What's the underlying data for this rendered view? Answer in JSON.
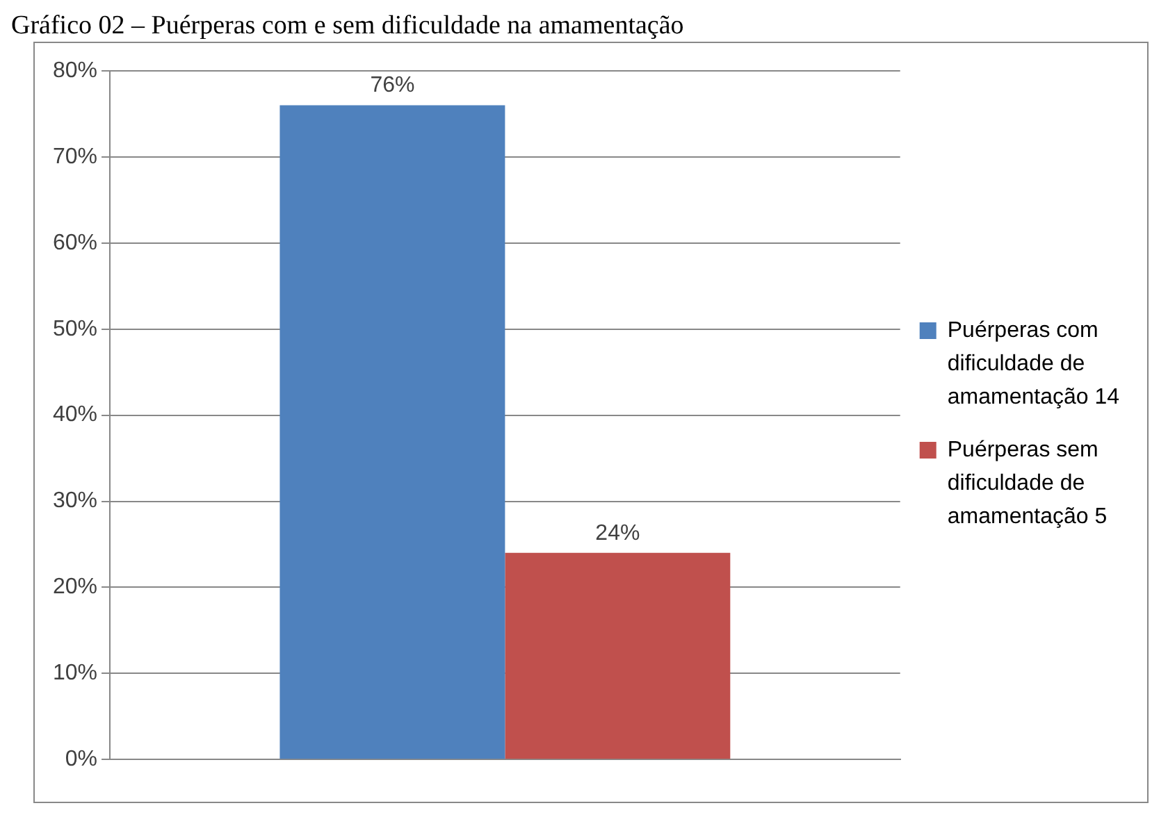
{
  "chart_data": {
    "type": "bar",
    "title": "Gráfico 02 – Puérperas com e sem dificuldade na amamentação",
    "categories": [
      null
    ],
    "series": [
      {
        "name": "Puérperas com dificuldade de amamentação 14",
        "color": "#4f81bd",
        "values": [
          76
        ],
        "value_labels": [
          "76%"
        ]
      },
      {
        "name": "Puérperas sem dificuldade de amamentação 5",
        "color": "#c0504d",
        "values": [
          24
        ],
        "value_labels": [
          "24%"
        ]
      }
    ],
    "ylim": [
      0,
      80
    ],
    "yticks": [
      {
        "value": 0,
        "label": "0%"
      },
      {
        "value": 10,
        "label": "10%"
      },
      {
        "value": 20,
        "label": "20%"
      },
      {
        "value": 30,
        "label": "30%"
      },
      {
        "value": 40,
        "label": "40%"
      },
      {
        "value": 50,
        "label": "50%"
      },
      {
        "value": 60,
        "label": "60%"
      },
      {
        "value": 70,
        "label": "70%"
      },
      {
        "value": 80,
        "label": "80%"
      }
    ],
    "grid": "y",
    "legend": "right"
  }
}
